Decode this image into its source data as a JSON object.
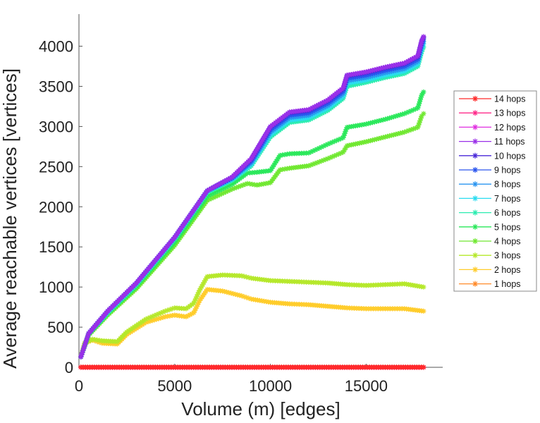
{
  "chart_data": {
    "type": "line",
    "title": "",
    "xlabel": "Volume (m) [edges]",
    "ylabel": "Average reachable vertices [vertices]",
    "xlim": [
      0,
      19000
    ],
    "ylim": [
      0,
      4400
    ],
    "xticks": [
      0,
      5000,
      10000,
      15000
    ],
    "yticks": [
      0,
      500,
      1000,
      1500,
      2000,
      2500,
      3000,
      3500,
      4000
    ],
    "grid": false,
    "legend_position": "right",
    "marker": "asterisk",
    "series": [
      {
        "name": "14 hops",
        "color": "#ff2a2a",
        "x": [
          100,
          18000
        ],
        "y": [
          0,
          0
        ]
      },
      {
        "name": "13 hops",
        "color": "#ff2a8a",
        "x": [
          100,
          18000
        ],
        "y": [
          0,
          0
        ]
      },
      {
        "name": "12 hops",
        "color": "#e030e0",
        "x": [
          100,
          18000
        ],
        "y": [
          0,
          0
        ]
      },
      {
        "name": "11 hops",
        "color": "#9a30e8",
        "x": [
          100,
          500,
          1500,
          3000,
          5000,
          6700,
          8000,
          9000,
          10000,
          11000,
          12000,
          13000,
          13800,
          14000,
          15000,
          16000,
          17000,
          17700,
          17900,
          18000
        ],
        "y": [
          130,
          420,
          700,
          1050,
          1620,
          2200,
          2370,
          2600,
          3000,
          3180,
          3210,
          3330,
          3480,
          3640,
          3680,
          3740,
          3790,
          3880,
          4070,
          4120
        ]
      },
      {
        "name": "10 hops",
        "color": "#4a2ad8",
        "x": [
          100,
          500,
          1500,
          3000,
          5000,
          6700,
          8000,
          9000,
          10000,
          11000,
          12000,
          13000,
          13800,
          14000,
          15000,
          16000,
          17000,
          17700,
          17900,
          18000
        ],
        "y": [
          130,
          420,
          700,
          1050,
          1620,
          2200,
          2370,
          2590,
          2990,
          3170,
          3200,
          3320,
          3470,
          3630,
          3670,
          3730,
          3780,
          3870,
          4060,
          4110
        ]
      },
      {
        "name": "9 hops",
        "color": "#2a55ee",
        "x": [
          100,
          500,
          1500,
          3000,
          5000,
          6700,
          8000,
          9000,
          10000,
          11000,
          12000,
          13000,
          13800,
          14000,
          15000,
          16000,
          17000,
          17700,
          17900,
          18000
        ],
        "y": [
          130,
          420,
          700,
          1050,
          1620,
          2200,
          2360,
          2570,
          2960,
          3140,
          3170,
          3290,
          3440,
          3600,
          3640,
          3700,
          3750,
          3840,
          4030,
          4090
        ]
      },
      {
        "name": "8 hops",
        "color": "#2a95f0",
        "x": [
          100,
          500,
          1500,
          3000,
          5000,
          6700,
          8000,
          9000,
          10000,
          11000,
          12000,
          13000,
          13800,
          14000,
          15000,
          16000,
          17000,
          17700,
          17900,
          18000
        ],
        "y": [
          130,
          420,
          700,
          1050,
          1620,
          2200,
          2350,
          2550,
          2930,
          3110,
          3140,
          3260,
          3410,
          3570,
          3610,
          3670,
          3720,
          3810,
          4000,
          4060
        ]
      },
      {
        "name": "7 hops",
        "color": "#2adcf0",
        "x": [
          100,
          500,
          1500,
          3000,
          5000,
          6700,
          8000,
          9000,
          10000,
          11000,
          12000,
          13000,
          13800,
          14000,
          15000,
          16000,
          17000,
          17700,
          17900,
          18000
        ],
        "y": [
          130,
          420,
          690,
          1040,
          1610,
          2190,
          2340,
          2530,
          2900,
          3080,
          3110,
          3230,
          3380,
          3540,
          3580,
          3640,
          3690,
          3780,
          3970,
          4030
        ]
      },
      {
        "name": "6 hops",
        "color": "#2aecb0",
        "x": [
          100,
          500,
          1500,
          3000,
          5000,
          6700,
          8000,
          9000,
          10000,
          11000,
          12000,
          13000,
          13800,
          14000,
          15000,
          16000,
          17000,
          17700,
          17900,
          18000
        ],
        "y": [
          130,
          420,
          680,
          1030,
          1600,
          2180,
          2330,
          2510,
          2870,
          3050,
          3080,
          3200,
          3350,
          3500,
          3550,
          3610,
          3660,
          3750,
          3930,
          3990
        ]
      },
      {
        "name": "5 hops",
        "color": "#2ae85a",
        "x": [
          100,
          500,
          1500,
          3000,
          5000,
          6700,
          8000,
          8800,
          9300,
          10000,
          10500,
          11000,
          12000,
          13000,
          13800,
          14000,
          15000,
          16000,
          17000,
          17700,
          17900,
          18000
        ],
        "y": [
          130,
          410,
          670,
          1010,
          1560,
          2130,
          2280,
          2420,
          2430,
          2450,
          2640,
          2660,
          2670,
          2780,
          2860,
          2990,
          3030,
          3090,
          3160,
          3230,
          3390,
          3430
        ]
      },
      {
        "name": "4 hops",
        "color": "#70e830",
        "x": [
          100,
          500,
          1500,
          3000,
          5000,
          6700,
          8000,
          8800,
          9300,
          10000,
          10500,
          11000,
          12000,
          13000,
          13800,
          14000,
          15000,
          16000,
          17000,
          17700,
          17900,
          18000
        ],
        "y": [
          130,
          400,
          650,
          980,
          1520,
          2080,
          2220,
          2290,
          2270,
          2300,
          2460,
          2480,
          2510,
          2600,
          2680,
          2760,
          2810,
          2870,
          2930,
          2990,
          3130,
          3160
        ]
      },
      {
        "name": "3 hops",
        "color": "#b5e82a",
        "x": [
          100,
          300,
          700,
          1200,
          2000,
          2500,
          3500,
          4500,
          5000,
          5600,
          6000,
          6300,
          6700,
          7500,
          8500,
          9000,
          10000,
          11000,
          12000,
          13000,
          14000,
          15000,
          16000,
          17000,
          18000
        ],
        "y": [
          130,
          300,
          350,
          330,
          320,
          440,
          600,
          700,
          740,
          730,
          800,
          960,
          1130,
          1150,
          1140,
          1110,
          1080,
          1070,
          1060,
          1050,
          1030,
          1020,
          1030,
          1040,
          1000
        ]
      },
      {
        "name": "2 hops",
        "color": "#ffcc2a",
        "x": [
          100,
          300,
          700,
          1200,
          2000,
          2500,
          3500,
          4500,
          5000,
          5600,
          6000,
          6300,
          6700,
          7500,
          8500,
          9000,
          10000,
          11000,
          12000,
          13000,
          14000,
          15000,
          16000,
          17000,
          18000
        ],
        "y": [
          130,
          300,
          340,
          300,
          290,
          410,
          560,
          630,
          650,
          630,
          680,
          830,
          970,
          950,
          890,
          850,
          810,
          790,
          780,
          760,
          740,
          730,
          730,
          730,
          700
        ]
      },
      {
        "name": "1 hops",
        "color": "#ff8a2a",
        "x": [
          100,
          18000
        ],
        "y": [
          3,
          3
        ]
      }
    ]
  }
}
